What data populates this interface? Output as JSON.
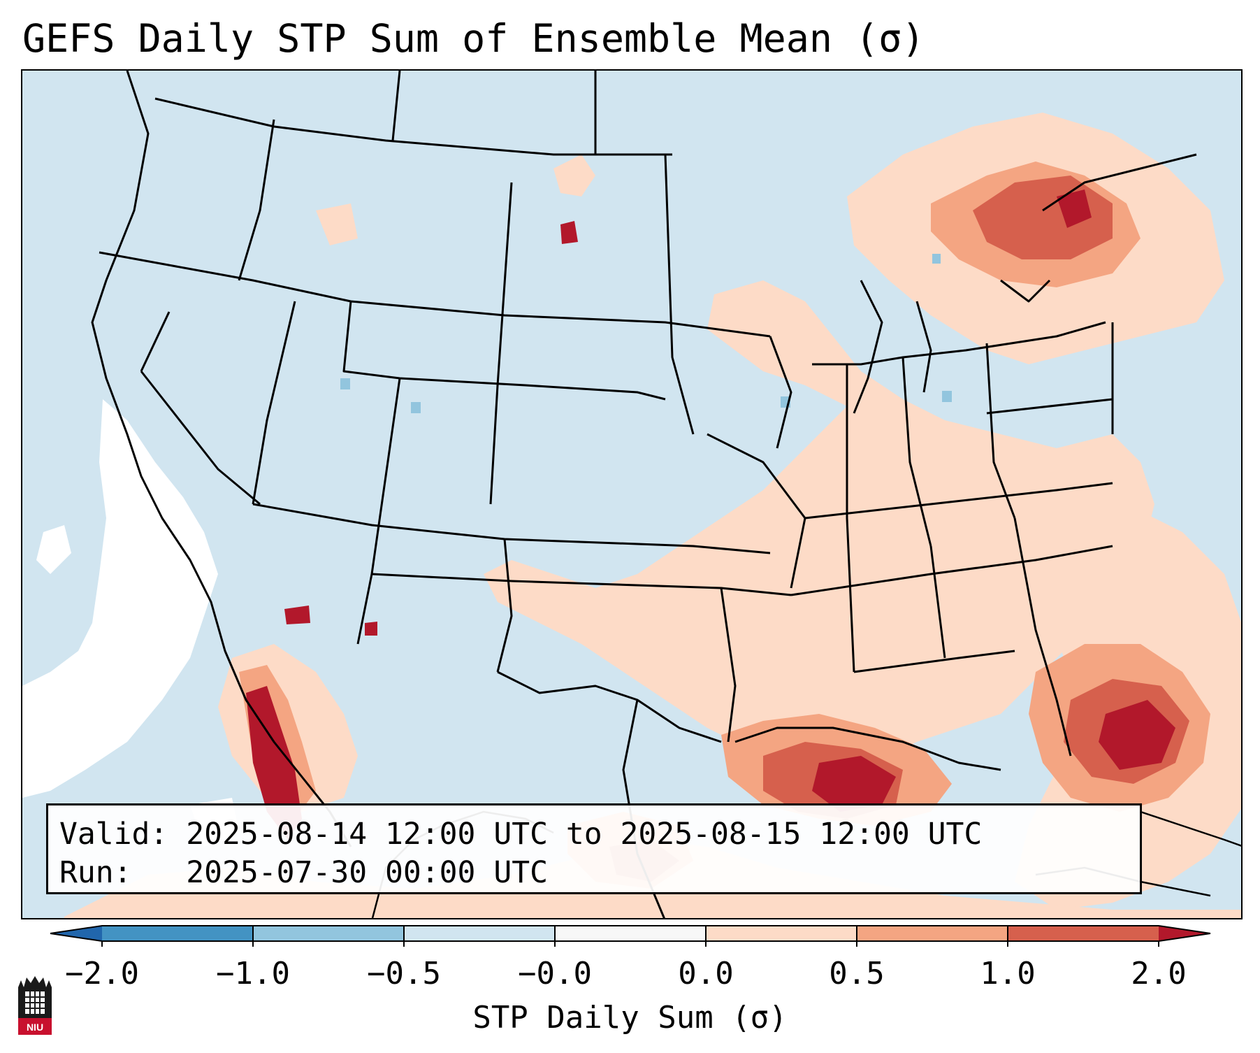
{
  "title": "GEFS Daily STP Sum of Ensemble Mean (σ)",
  "info": {
    "valid": "Valid: 2025-08-14 12:00 UTC to 2025-08-15 12:00 UTC",
    "run": "Run:   2025-07-30 00:00 UTC"
  },
  "colorbar": {
    "label": "STP Daily Sum (σ)",
    "ticks": [
      "−2.0",
      "−1.0",
      "−0.5",
      "−0.0",
      "0.0",
      "0.5",
      "1.0",
      "2.0"
    ],
    "colors": [
      "#4393c3",
      "#92c5de",
      "#d1e5f0",
      "#f7f7f7",
      "#fddbc7",
      "#f4a582",
      "#d6604d",
      "#b2182b"
    ],
    "under_color": "#2166ac",
    "over_color": "#b2182b"
  },
  "logo": {
    "text": "NIU",
    "brand_color": "#c8102e"
  },
  "colors": {
    "background_field": "#d1e5f0",
    "neutral": "#ffffff"
  }
}
